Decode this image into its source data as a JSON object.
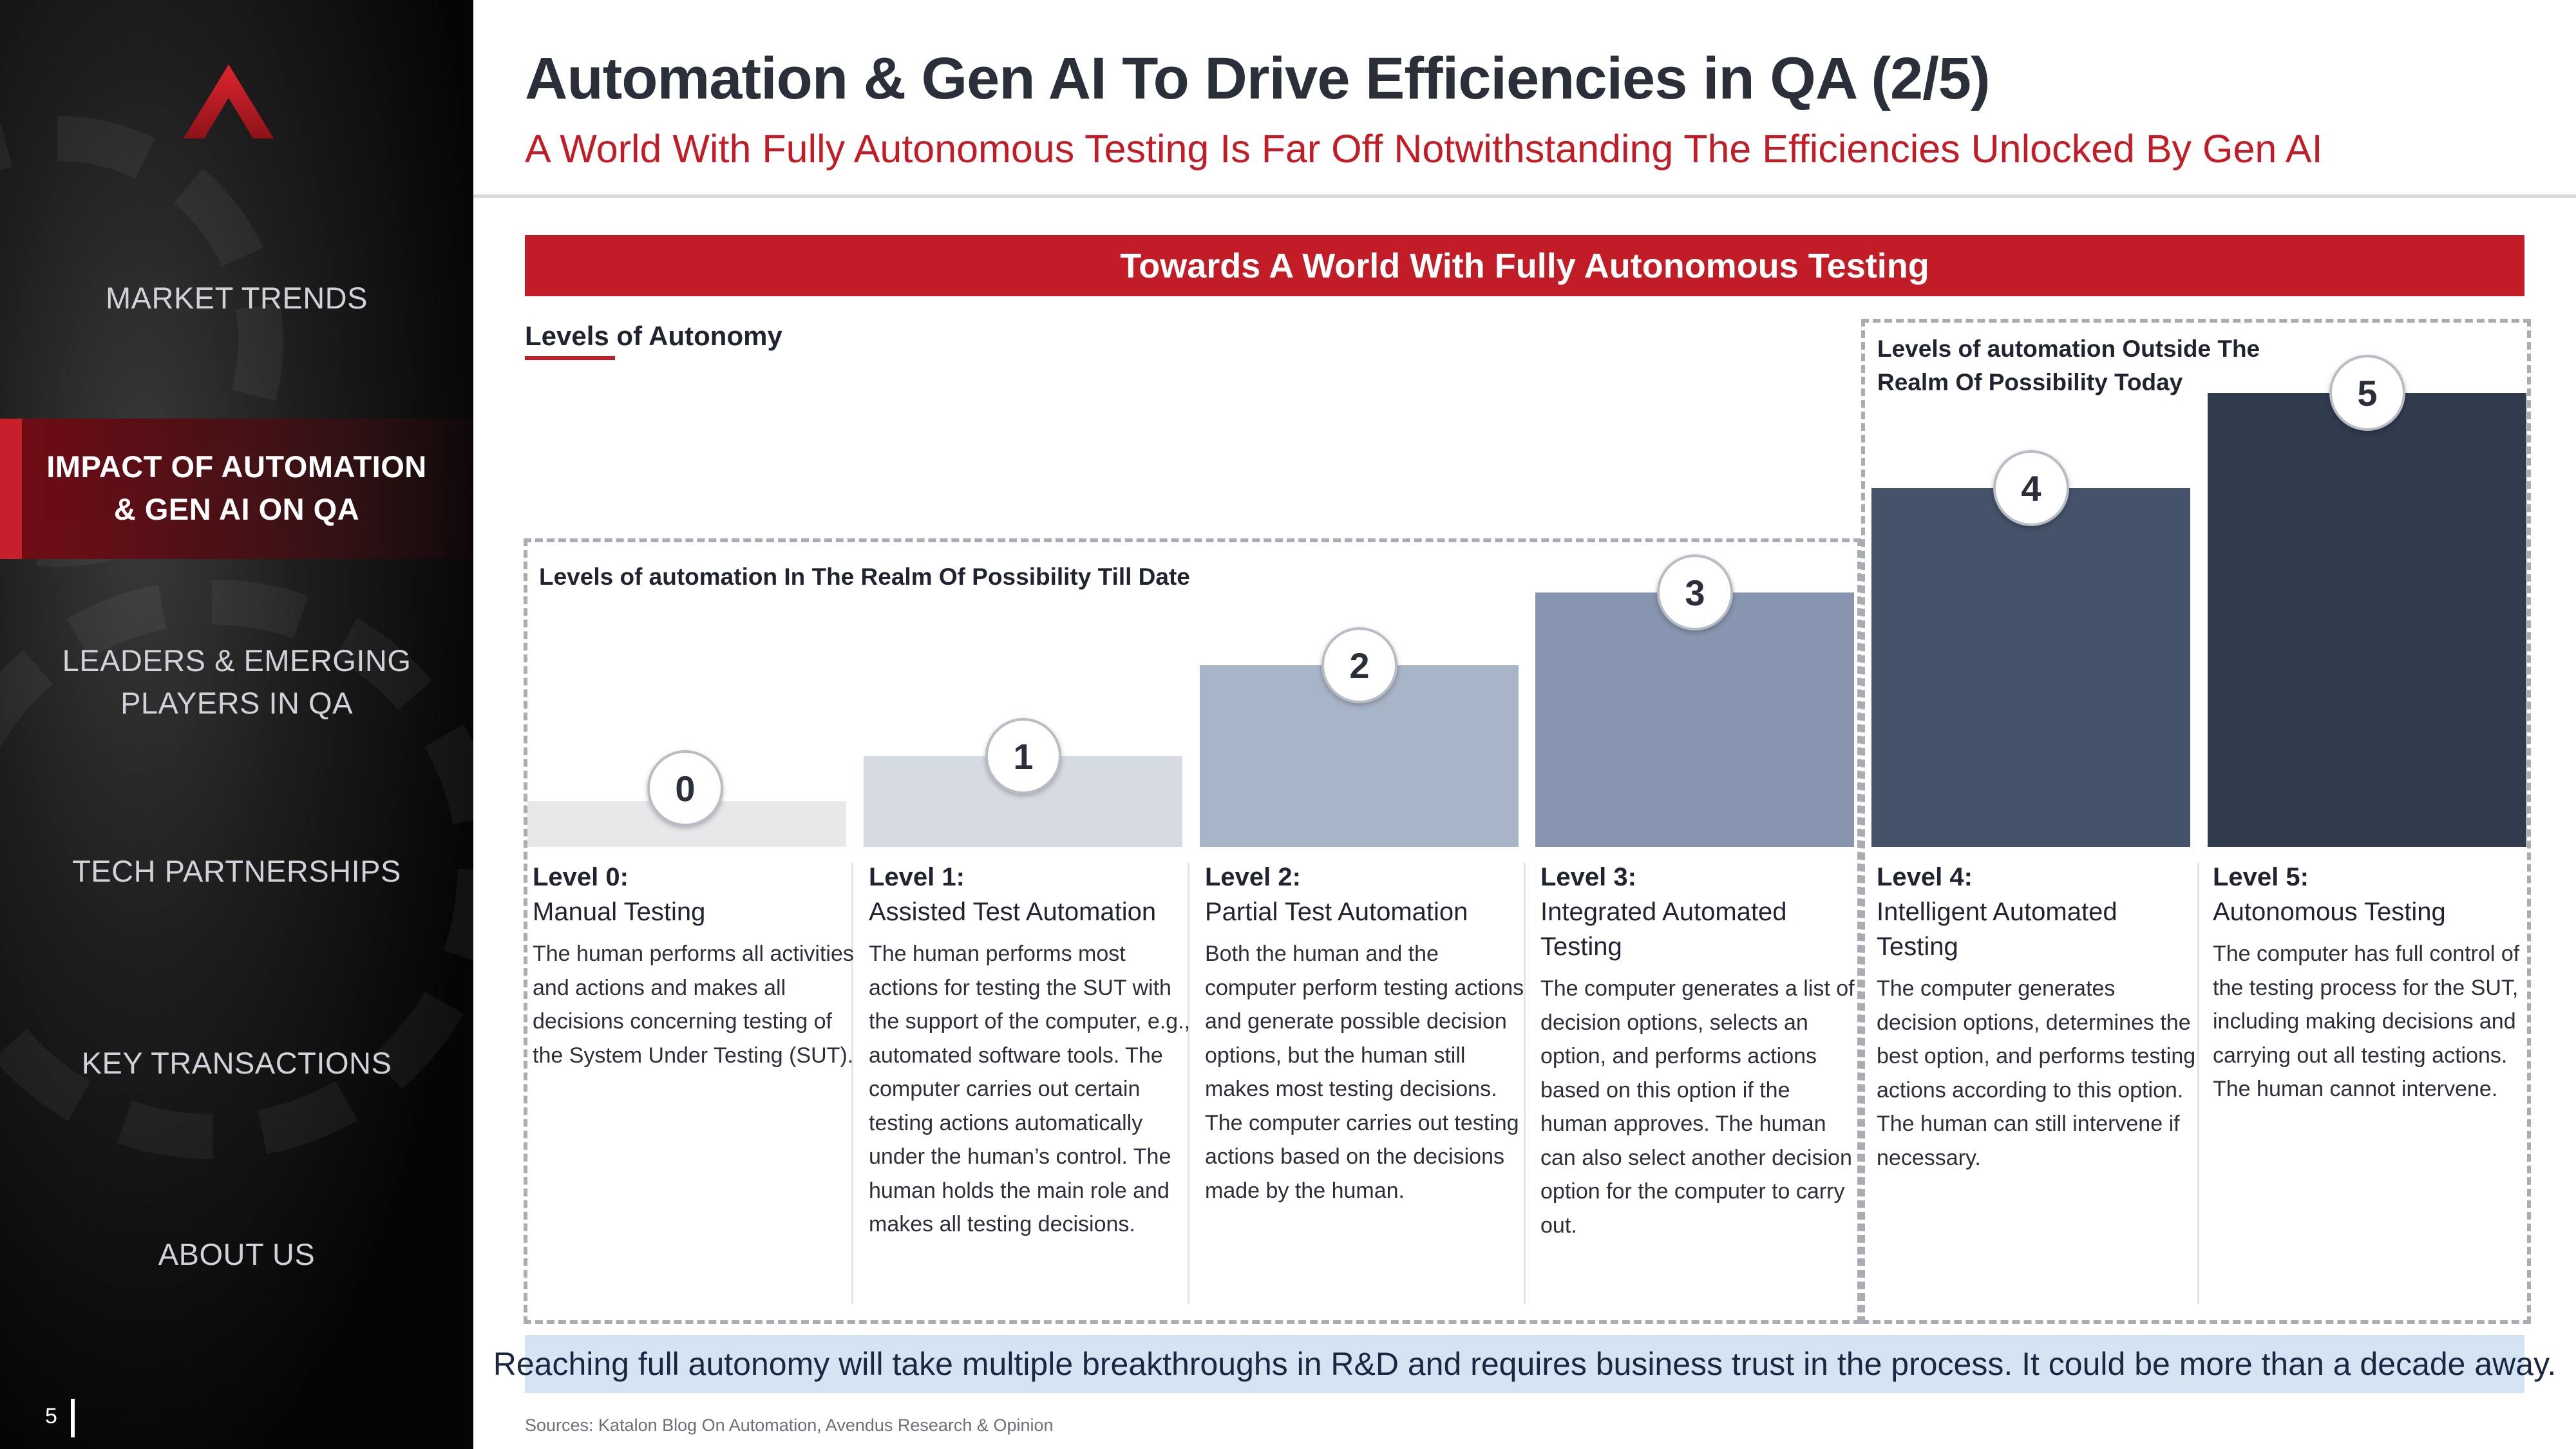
{
  "sidebar": {
    "nav": [
      {
        "label": "MARKET TRENDS",
        "active": false
      },
      {
        "label": "IMPACT OF AUTOMATION\n& GEN AI ON QA",
        "active": true
      },
      {
        "label": "LEADERS & EMERGING\nPLAYERS IN QA",
        "active": false
      },
      {
        "label": "TECH PARTNERSHIPS",
        "active": false
      },
      {
        "label": "KEY TRANSACTIONS",
        "active": false
      },
      {
        "label": "ABOUT US",
        "active": false
      }
    ],
    "page_number": "5",
    "logo_icon": "brand-chevron-logo"
  },
  "header": {
    "title": "Automation & Gen AI To Drive Efficiencies in QA (2/5)",
    "subtitle": "A World With Fully Autonomous Testing Is Far Off Notwithstanding The Efficiencies Unlocked By Gen AI"
  },
  "banner": "Towards A World With Fully Autonomous Testing",
  "levels_heading": "Levels of Autonomy",
  "box_left_label": "Levels of automation In The Realm Of Possibility Till Date",
  "box_right_label": "Levels of automation Outside The Realm Of Possibility Today",
  "levels": [
    {
      "badge": "0",
      "name": "Level 0:",
      "type": "Manual Testing",
      "relative_level": 0.1,
      "color": "#e8e8ea",
      "desc": "The human performs all activities and actions and makes all decisions concerning testing of the System Under Testing (SUT)."
    },
    {
      "badge": "1",
      "name": "Level 1:",
      "type": "Assisted Test Automation",
      "relative_level": 0.2,
      "color": "#d6dae2",
      "desc": "The human performs most actions for testing the SUT with the support of the computer, e.g., automated software tools. The computer carries out certain testing actions automatically under the human’s control. The human holds the main role and makes all testing decisions."
    },
    {
      "badge": "2",
      "name": "Level 2:",
      "type": "Partial Test Automation",
      "relative_level": 0.4,
      "color": "#a8b4c8",
      "desc": "Both the human and the computer perform testing actions and generate possible decision options, but the human still makes most testing decisions. The computer carries out testing actions based on the decisions made by the human."
    },
    {
      "badge": "3",
      "name": "Level 3:",
      "type": "Integrated Automated Testing",
      "relative_level": 0.56,
      "color": "#8795b0",
      "desc": "The computer generates a list of decision options, selects an option, and performs actions based on this option if the human approves. The human can also select another decision option for the computer to carry out."
    },
    {
      "badge": "4",
      "name": "Level 4:",
      "type": "Intelligent Automated Testing",
      "relative_level": 0.79,
      "color": "#44536a",
      "desc": "The computer generates decision options, determines the best option, and performs testing actions according to this option. The human can still intervene if necessary."
    },
    {
      "badge": "5",
      "name": "Level 5:",
      "type": "Autonomous Testing",
      "relative_level": 1.0,
      "color": "#313b4e",
      "desc": "The computer has full control of the testing process for the SUT, including making decisions and carrying out all testing actions. The human cannot intervene."
    }
  ],
  "footer_note": "Reaching full autonomy will take multiple breakthroughs in R&D and requires business trust in the process. It could be more than a decade away.",
  "sources": "Sources: Katalon Blog On Automation, Avendus Research & Opinion",
  "colors": {
    "accent_red": "#c21d26",
    "note_bg": "#d4e4f2",
    "sidebar_bg": "#0b0b0b"
  }
}
